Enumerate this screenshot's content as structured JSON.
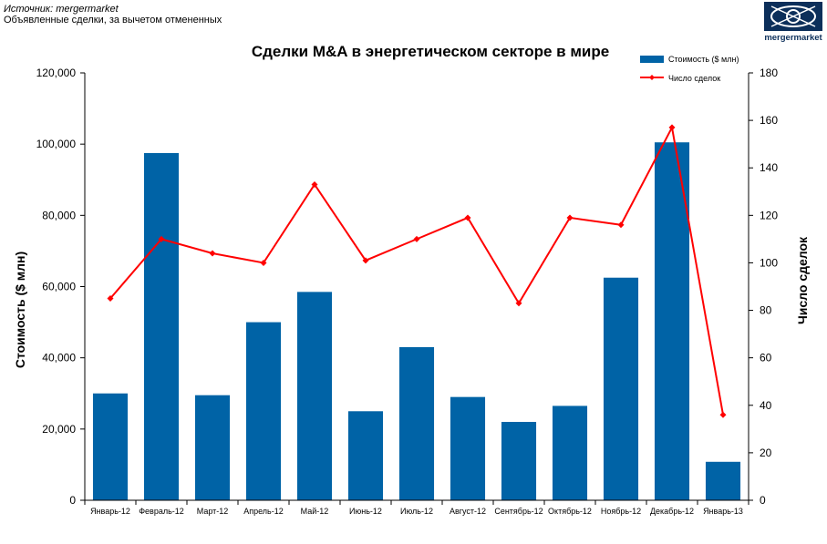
{
  "header": {
    "source": "Источник: mergermarket",
    "note": "Объявленные сделки, за вычетом отмененных",
    "logo_text": "mergermarket"
  },
  "colors": {
    "bar": "#0063a6",
    "line": "#ff0000",
    "logo": "#0c2f5a"
  },
  "chart_data": {
    "type": "bar",
    "title": "Сделки M&A в энергетическом секторе в мире",
    "categories": [
      "Январь-12",
      "Февраль-12",
      "Март-12",
      "Апрель-12",
      "Май-12",
      "Июнь-12",
      "Июль-12",
      "Август-12",
      "Сентябрь-12",
      "Октябрь-12",
      "Ноябрь-12",
      "Декабрь-12",
      "Январь-13"
    ],
    "series": [
      {
        "name": "Стоимость ($ млн)",
        "type": "bar",
        "axis": "left",
        "values": [
          30000,
          97500,
          29500,
          50000,
          58500,
          25000,
          43000,
          29000,
          22000,
          26500,
          62500,
          100500,
          10800
        ]
      },
      {
        "name": "Число сделок",
        "type": "line",
        "axis": "right",
        "values": [
          85,
          110,
          104,
          100,
          133,
          101,
          110,
          119,
          83,
          119,
          116,
          157,
          36
        ]
      }
    ],
    "ylabel": "Стоимость  ($ млн)",
    "y2label": "Число сделок",
    "ylim": [
      0,
      120000
    ],
    "y2lim": [
      0,
      180
    ],
    "yticks": [
      "0",
      "20,000",
      "40,000",
      "60,000",
      "80,000",
      "100,000",
      "120,000"
    ],
    "y2ticks": [
      "0",
      "20",
      "40",
      "60",
      "80",
      "100",
      "120",
      "140",
      "160",
      "180"
    ],
    "grid": false,
    "legend": "top-right"
  }
}
